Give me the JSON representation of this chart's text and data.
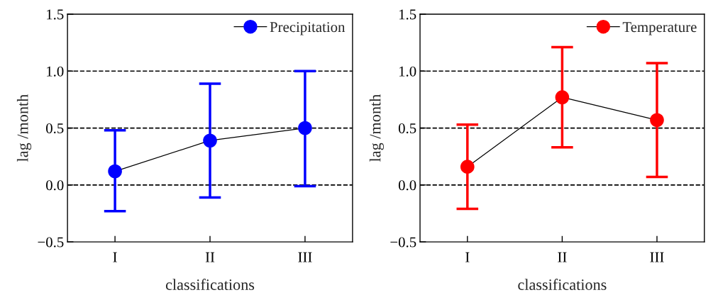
{
  "chart_data": [
    {
      "type": "line",
      "categories": [
        "I",
        "II",
        "III"
      ],
      "xlabel": "classifications",
      "ylabel": "lag /month",
      "series": [
        {
          "name": "Precipitation",
          "color": "#0000ff",
          "values": [
            0.12,
            0.39,
            0.5
          ],
          "errors": [
            [
              -0.23,
              0.48
            ],
            [
              -0.11,
              0.89
            ],
            [
              -0.01,
              1.0
            ]
          ]
        }
      ],
      "ylim": [
        -0.5,
        1.5
      ],
      "yticks": [
        {
          "value": -0.5,
          "label": "−0.5"
        },
        {
          "value": 0,
          "label": "0.0"
        },
        {
          "value": 0.5,
          "label": "0.5"
        },
        {
          "value": 1,
          "label": "1.0"
        },
        {
          "value": 1.5,
          "label": "1.5"
        }
      ],
      "ref_lines": [
        {
          "axis": "y",
          "value": 0,
          "color": "#000000",
          "line_style": "dashed"
        },
        {
          "axis": "y",
          "value": 0.5,
          "color": "#000000",
          "line_style": "dashed"
        },
        {
          "axis": "y",
          "value": 1.0,
          "color": "#000000",
          "line_style": "dashed"
        }
      ],
      "legend": "top right",
      "marker": "circle",
      "line_style": "solid",
      "grid": false
    },
    {
      "type": "line",
      "categories": [
        "I",
        "II",
        "III"
      ],
      "xlabel": "classifications",
      "ylabel": "lag /month",
      "series": [
        {
          "name": "Temperature",
          "color": "#ff0000",
          "values": [
            0.16,
            0.77,
            0.57
          ],
          "errors": [
            [
              -0.21,
              0.53
            ],
            [
              0.33,
              1.21
            ],
            [
              0.07,
              1.07
            ]
          ]
        }
      ],
      "ylim": [
        -0.5,
        1.5
      ],
      "yticks": [
        {
          "value": -0.5,
          "label": "−0.5"
        },
        {
          "value": 0,
          "label": "0.0"
        },
        {
          "value": 0.5,
          "label": "0.5"
        },
        {
          "value": 1,
          "label": "1.0"
        },
        {
          "value": 1.5,
          "label": "1.5"
        }
      ],
      "ref_lines": [
        {
          "axis": "y",
          "value": 0,
          "color": "#000000",
          "line_style": "dashed"
        },
        {
          "axis": "y",
          "value": 0.5,
          "color": "#000000",
          "line_style": "dashed"
        },
        {
          "axis": "y",
          "value": 1.0,
          "color": "#000000",
          "line_style": "dashed"
        }
      ],
      "legend": "top right",
      "marker": "circle",
      "line_style": "solid",
      "grid": false
    }
  ]
}
